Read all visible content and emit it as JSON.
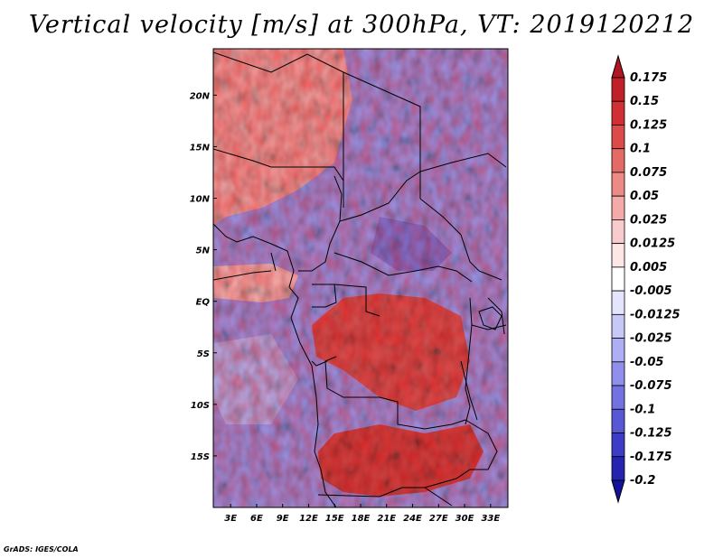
{
  "title": "Vertical velocity [m/s] at 300hPa, VT: 2019120212",
  "credit": "GrADS: IGES/COLA",
  "map": {
    "lon_labels": [
      "3E",
      "6E",
      "9E",
      "12E",
      "15E",
      "18E",
      "21E",
      "24E",
      "27E",
      "30E",
      "33E"
    ],
    "lat_labels": [
      "20N",
      "15N",
      "10N",
      "5N",
      "EQ",
      "5S",
      "10S",
      "15S"
    ],
    "lon_range": [
      1,
      35
    ],
    "lat_range": [
      -20,
      24.5
    ],
    "grid": false
  },
  "colorbar": {
    "labels": [
      "0.175",
      "0.15",
      "0.125",
      "0.1",
      "0.075",
      "0.05",
      "0.025",
      "0.0125",
      "0.005",
      "-0.005",
      "-0.0125",
      "-0.025",
      "-0.05",
      "-0.075",
      "-0.1",
      "-0.125",
      "-0.175",
      "-0.2"
    ],
    "colors": [
      "#b01620",
      "#c02028",
      "#d03034",
      "#dc4a4a",
      "#e46a66",
      "#ec8a86",
      "#f4aaa8",
      "#f8cccc",
      "#fce6e6",
      "#ffffff",
      "#e4e4fc",
      "#c8c8f8",
      "#aeaef4",
      "#9090ec",
      "#7272e2",
      "#5858d6",
      "#3c3cc6",
      "#2424b0",
      "#12129a"
    ]
  }
}
